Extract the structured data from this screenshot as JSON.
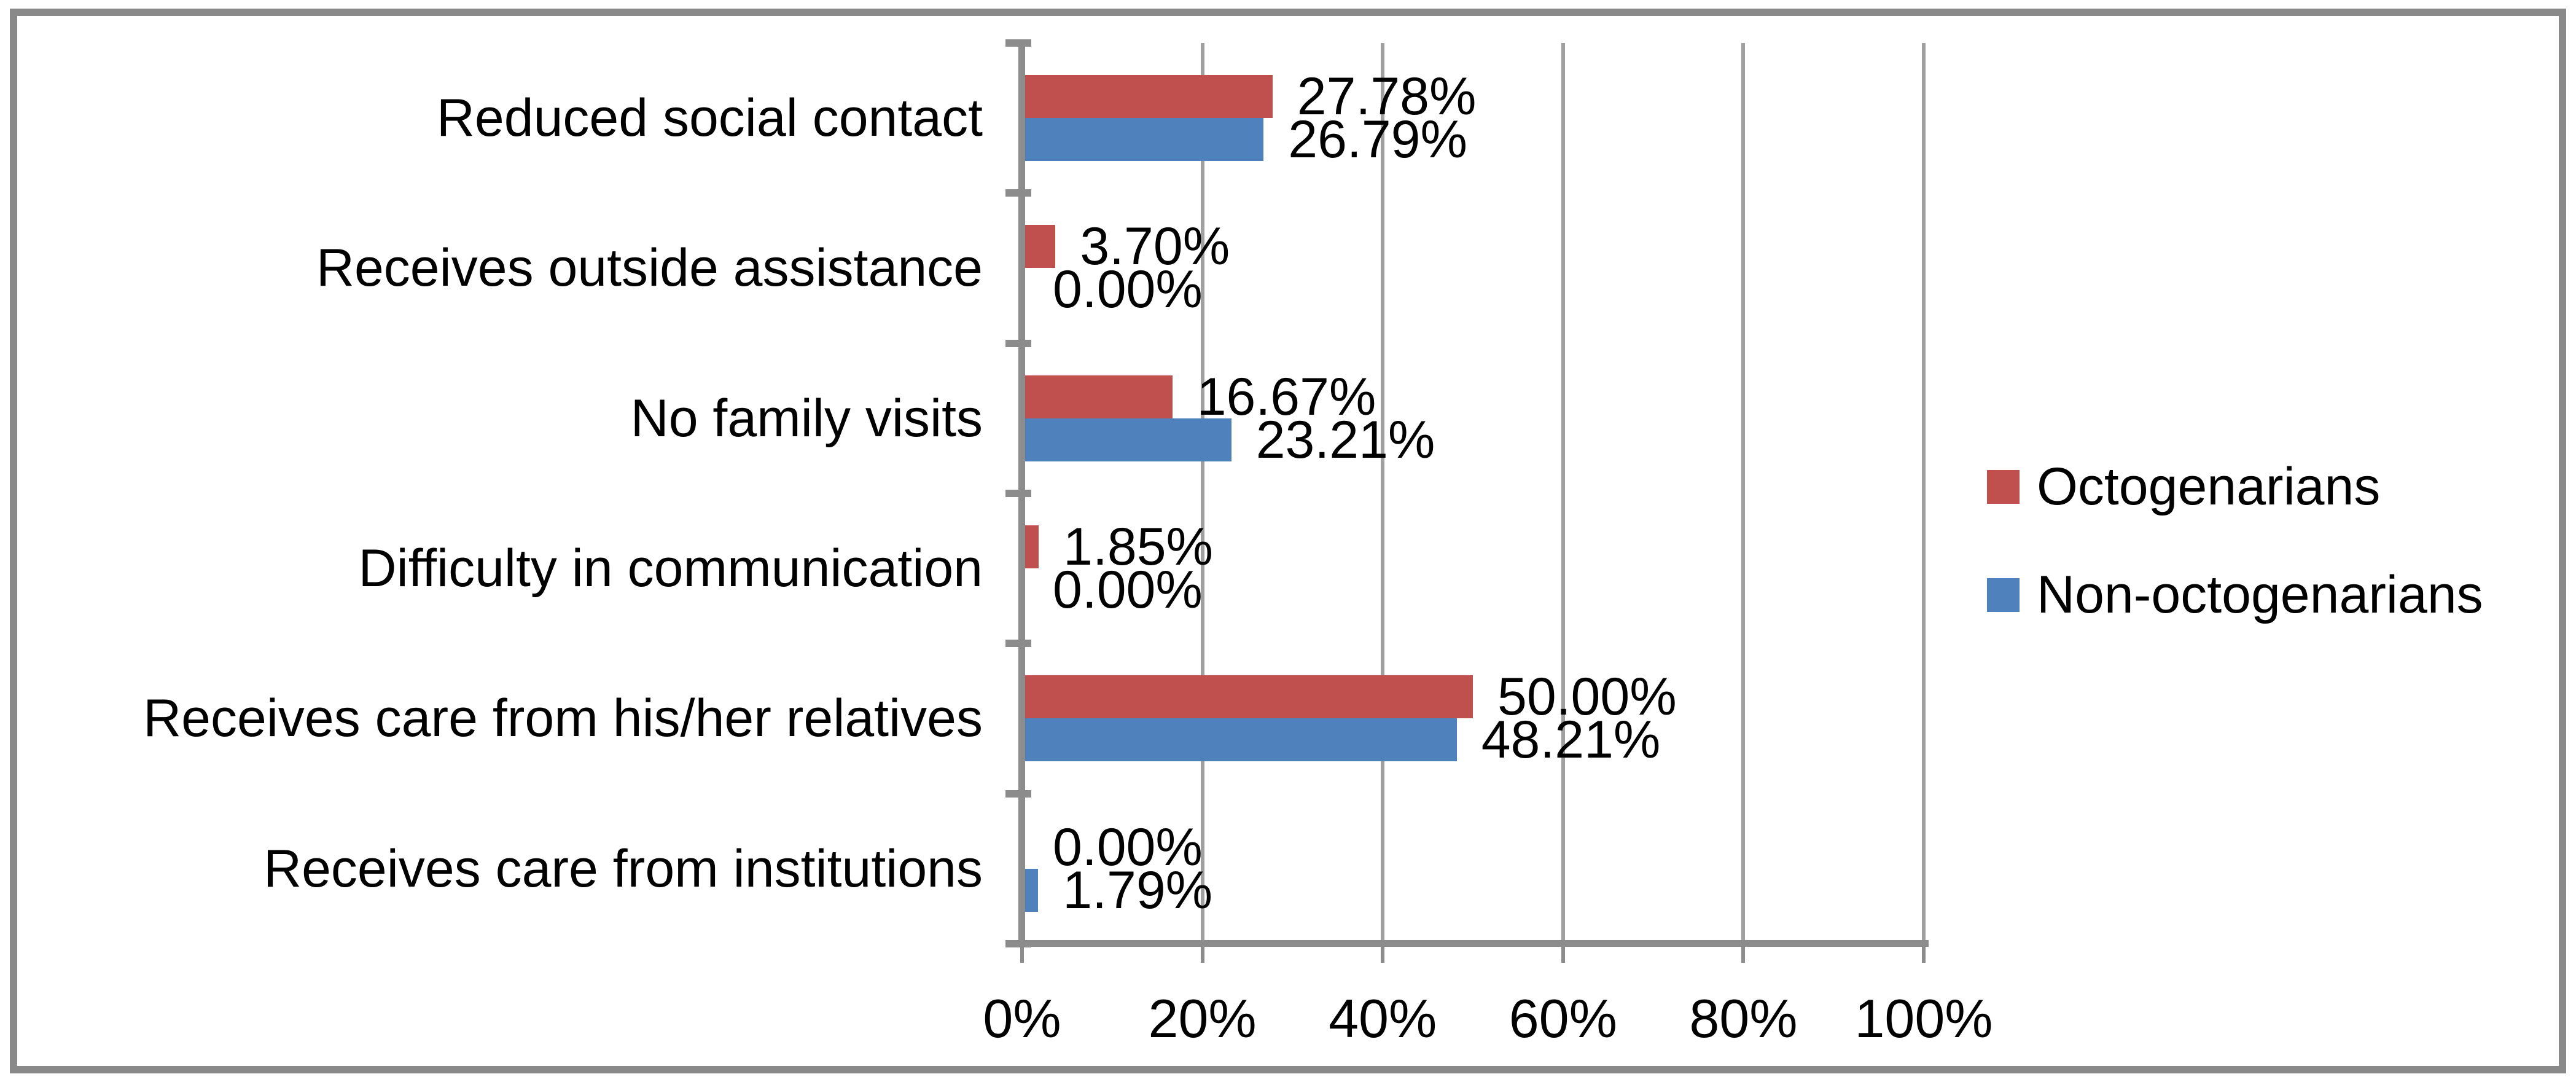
{
  "chart_data": {
    "type": "bar",
    "orientation": "horizontal",
    "title": "",
    "xlabel": "",
    "ylabel": "",
    "categories": [
      "Reduced social contact",
      "Receives outside assistance",
      "No family visits",
      "Difficulty in communication",
      "Receives care from his/her relatives",
      "Receives care from institutions"
    ],
    "series": [
      {
        "name": "Octogenarians",
        "color": "#C0504D",
        "values": [
          27.78,
          3.7,
          16.67,
          1.85,
          50.0,
          0.0
        ],
        "labels": [
          "27.78%",
          "3.70%",
          "16.67%",
          "1.85%",
          "50.00%",
          "0.00%"
        ]
      },
      {
        "name": "Non-octogenarians",
        "color": "#4F81BD",
        "values": [
          26.79,
          0.0,
          23.21,
          0.0,
          48.21,
          1.79
        ],
        "labels": [
          "26.79%",
          "0.00%",
          "23.21%",
          "0.00%",
          "48.21%",
          "1.79%"
        ]
      }
    ],
    "x_axis": {
      "min": 0,
      "max": 100,
      "tick_step": 20,
      "ticks": [
        "0%",
        "20%",
        "40%",
        "60%",
        "80%",
        "100%"
      ],
      "grid": true
    },
    "legend": {
      "position": "right",
      "entries": [
        "Octogenarians",
        "Non-octogenarians"
      ]
    },
    "colors": {
      "grid": "#A0A0A0",
      "axis": "#8C8C8C",
      "frame_border": "#898989",
      "text": "#000000",
      "background": "#FFFFFF"
    }
  }
}
